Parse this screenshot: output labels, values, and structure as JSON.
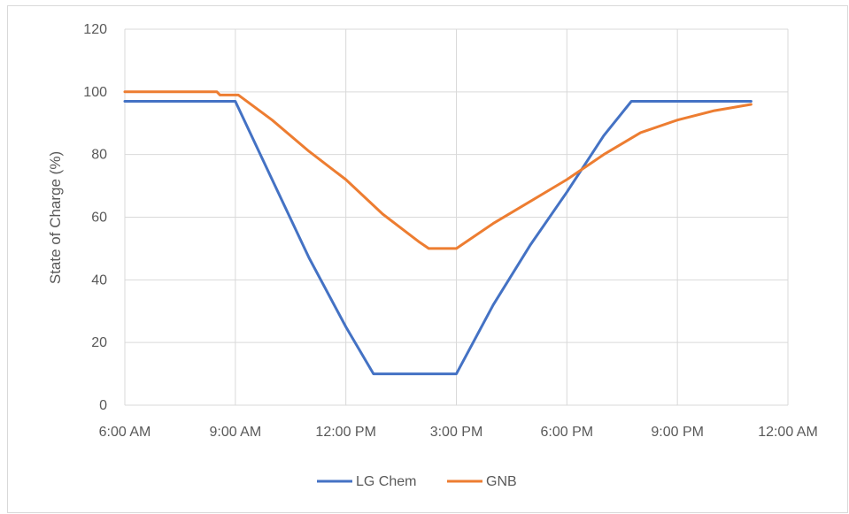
{
  "chart_data": {
    "type": "line",
    "title": "",
    "xlabel": "",
    "ylabel": "State of Charge (%)",
    "ylim": [
      0,
      120
    ],
    "yticks": [
      "0",
      "20",
      "40",
      "60",
      "80",
      "100",
      "120"
    ],
    "xlim": [
      "6:00 AM",
      "12:00 AM"
    ],
    "xticks": [
      "6:00 AM",
      "9:00 AM",
      "12:00 PM",
      "3:00 PM",
      "6:00 PM",
      "9:00 PM",
      "12:00 AM"
    ],
    "grid": true,
    "legend": "bottom",
    "series": [
      {
        "name": "LG Chem",
        "color": "#4472C4",
        "points": [
          [
            "6:00 AM",
            97
          ],
          [
            "9:00 AM",
            97
          ],
          [
            "10:00 AM",
            72
          ],
          [
            "11:00 AM",
            47
          ],
          [
            "12:00 PM",
            25
          ],
          [
            "12:45 PM",
            10
          ],
          [
            "3:00 PM",
            10
          ],
          [
            "4:00 PM",
            32
          ],
          [
            "5:00 PM",
            51
          ],
          [
            "6:00 PM",
            68
          ],
          [
            "7:00 PM",
            86
          ],
          [
            "7:45 PM",
            97
          ],
          [
            "11:00 PM",
            97
          ]
        ]
      },
      {
        "name": "GNB",
        "color": "#ED7D31",
        "points": [
          [
            "6:00 AM",
            100
          ],
          [
            "8:30 AM",
            100
          ],
          [
            "8:35 AM",
            99
          ],
          [
            "9:05 AM",
            99
          ],
          [
            "10:00 AM",
            91
          ],
          [
            "11:00 AM",
            81
          ],
          [
            "12:00 PM",
            72
          ],
          [
            "1:00 PM",
            61
          ],
          [
            "2:00 PM",
            52
          ],
          [
            "2:15 PM",
            50
          ],
          [
            "3:00 PM",
            50
          ],
          [
            "4:00 PM",
            58
          ],
          [
            "5:00 PM",
            65
          ],
          [
            "6:00 PM",
            72
          ],
          [
            "7:00 PM",
            80
          ],
          [
            "8:00 PM",
            87
          ],
          [
            "9:00 PM",
            91
          ],
          [
            "10:00 PM",
            94
          ],
          [
            "11:00 PM",
            96
          ]
        ]
      }
    ]
  }
}
